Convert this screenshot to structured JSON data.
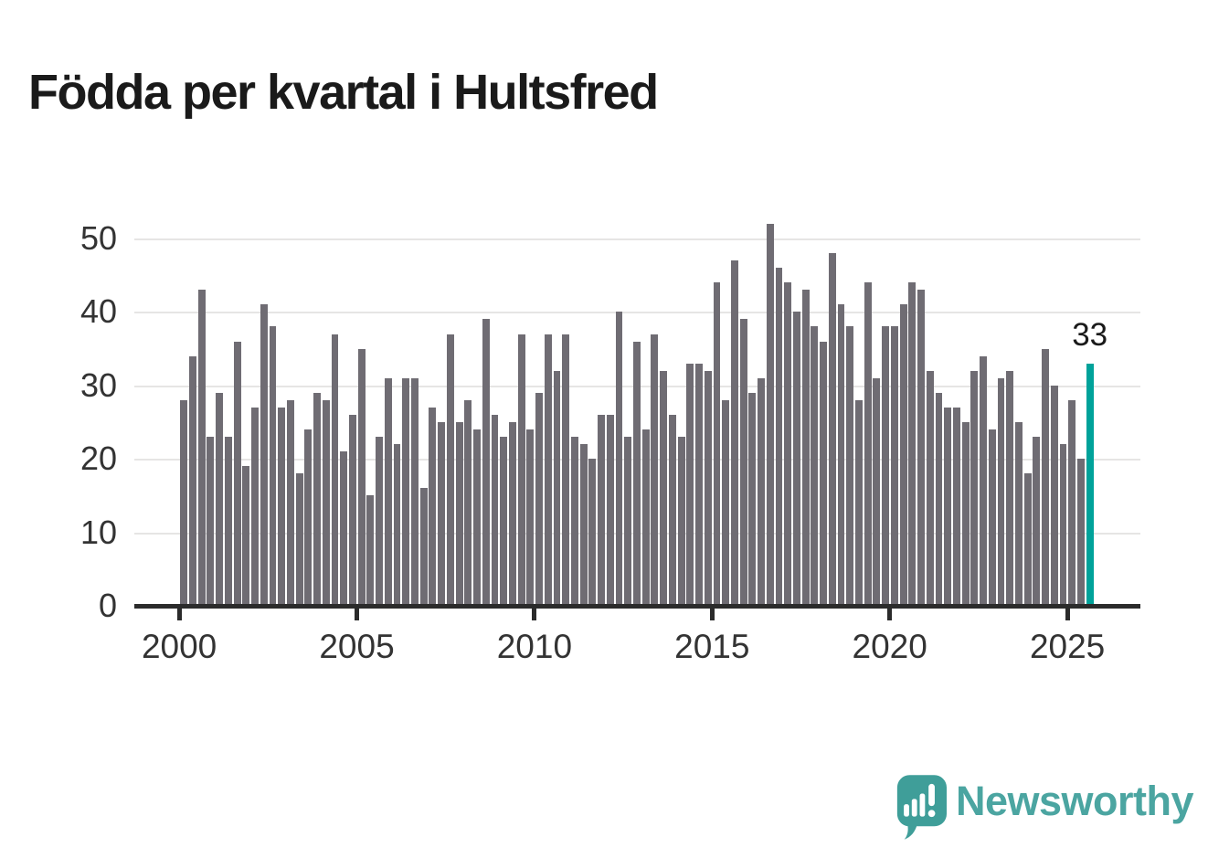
{
  "title": "Födda per kvartal i Hultsfred",
  "footer": {
    "brand": "Newsworthy"
  },
  "colors": {
    "bar": "#6f6c73",
    "highlight": "#00a29a",
    "gridline": "#e6e5e4",
    "axis": "#2b2b2b",
    "title_text": "#1a1a1a",
    "tick_label": "#333333",
    "logo_bubble": "#3f9e99",
    "wordmark": "#4ba5a1"
  },
  "chart_data": {
    "type": "bar",
    "title": "Födda per kvartal i Hultsfred",
    "xlabel": "",
    "ylabel": "",
    "ylim": [
      0,
      50
    ],
    "y_ticks": [
      0,
      10,
      20,
      30,
      40,
      50
    ],
    "x_tick_labels": [
      "2000",
      "2005",
      "2010",
      "2015",
      "2020",
      "2025"
    ],
    "x_tick_every_n_bars": 20,
    "grid": true,
    "legend_position": "none",
    "bar_color": "#6f6c73",
    "highlight_color": "#00a29a",
    "highlight_index": 102,
    "highlight_value_label": "33",
    "categories": [
      "2000Q1",
      "2000Q2",
      "2000Q3",
      "2000Q4",
      "2001Q1",
      "2001Q2",
      "2001Q3",
      "2001Q4",
      "2002Q1",
      "2002Q2",
      "2002Q3",
      "2002Q4",
      "2003Q1",
      "2003Q2",
      "2003Q3",
      "2003Q4",
      "2004Q1",
      "2004Q2",
      "2004Q3",
      "2004Q4",
      "2005Q1",
      "2005Q2",
      "2005Q3",
      "2005Q4",
      "2006Q1",
      "2006Q2",
      "2006Q3",
      "2006Q4",
      "2007Q1",
      "2007Q2",
      "2007Q3",
      "2007Q4",
      "2008Q1",
      "2008Q2",
      "2008Q3",
      "2008Q4",
      "2009Q1",
      "2009Q2",
      "2009Q3",
      "2009Q4",
      "2010Q1",
      "2010Q2",
      "2010Q3",
      "2010Q4",
      "2011Q1",
      "2011Q2",
      "2011Q3",
      "2011Q4",
      "2012Q1",
      "2012Q2",
      "2012Q3",
      "2012Q4",
      "2013Q1",
      "2013Q2",
      "2013Q3",
      "2013Q4",
      "2014Q1",
      "2014Q2",
      "2014Q3",
      "2014Q4",
      "2015Q1",
      "2015Q2",
      "2015Q3",
      "2015Q4",
      "2016Q1",
      "2016Q2",
      "2016Q3",
      "2016Q4",
      "2017Q1",
      "2017Q2",
      "2017Q3",
      "2017Q4",
      "2018Q1",
      "2018Q2",
      "2018Q3",
      "2018Q4",
      "2019Q1",
      "2019Q2",
      "2019Q3",
      "2019Q4",
      "2020Q1",
      "2020Q2",
      "2020Q3",
      "2020Q4",
      "2021Q1",
      "2021Q2",
      "2021Q3",
      "2021Q4",
      "2022Q1",
      "2022Q2",
      "2022Q3",
      "2022Q4",
      "2023Q1",
      "2023Q2",
      "2023Q3",
      "2023Q4",
      "2024Q1",
      "2024Q2",
      "2024Q3",
      "2024Q4",
      "2025Q1",
      "2025Q2",
      "2025Q3"
    ],
    "values": [
      28,
      34,
      43,
      23,
      29,
      23,
      36,
      19,
      27,
      41,
      38,
      27,
      28,
      18,
      24,
      29,
      28,
      37,
      21,
      26,
      35,
      15,
      23,
      31,
      22,
      31,
      31,
      16,
      27,
      25,
      37,
      25,
      28,
      24,
      39,
      26,
      23,
      25,
      37,
      24,
      29,
      37,
      32,
      37,
      23,
      22,
      20,
      26,
      26,
      40,
      23,
      36,
      24,
      37,
      32,
      26,
      23,
      33,
      33,
      32,
      44,
      28,
      47,
      39,
      29,
      31,
      52,
      46,
      44,
      40,
      43,
      38,
      36,
      48,
      41,
      38,
      28,
      44,
      31,
      38,
      38,
      41,
      44,
      43,
      32,
      29,
      27,
      27,
      25,
      32,
      34,
      24,
      31,
      32,
      25,
      18,
      23,
      35,
      30,
      22,
      28,
      20,
      33
    ]
  }
}
